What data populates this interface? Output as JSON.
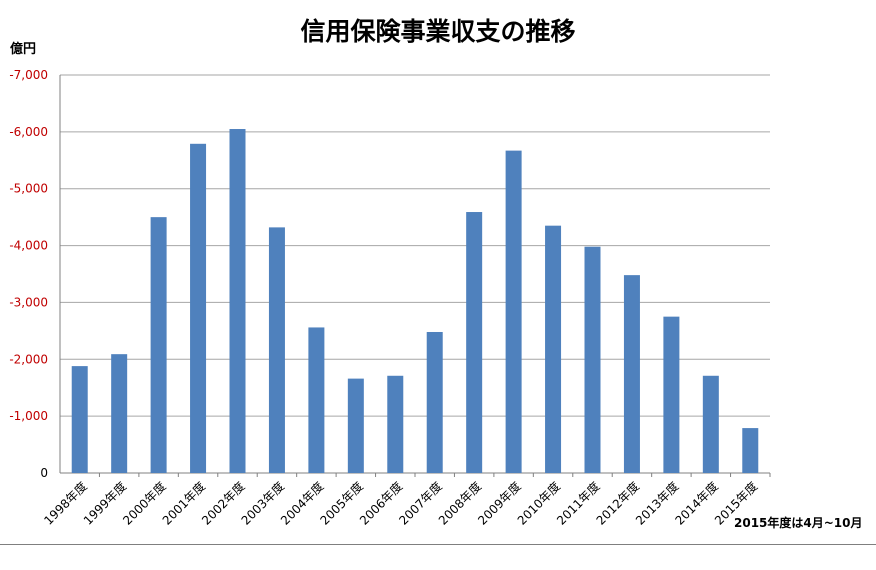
{
  "chart_data": {
    "type": "bar",
    "title": "信用保険事業収支の推移",
    "ylabel": "億円",
    "xlabel": "",
    "ylim": [
      0,
      -7000
    ],
    "y_ticks": [
      "-7,000",
      "-6,000",
      "-5,000",
      "-4,000",
      "-3,000",
      "-2,000",
      "-1,000",
      "0"
    ],
    "y_tick_values": [
      -7000,
      -6000,
      -5000,
      -4000,
      -3000,
      -2000,
      -1000,
      0
    ],
    "categories": [
      "1998年度",
      "1999年度",
      "2000年度",
      "2001年度",
      "2002年度",
      "2003年度",
      "2004年度",
      "2005年度",
      "2006年度",
      "2007年度",
      "2008年度",
      "2009年度",
      "2010年度",
      "2011年度",
      "2012年度",
      "2013年度",
      "2014年度",
      "2015年度"
    ],
    "values": [
      -1880,
      -2090,
      -4500,
      -5790,
      -6050,
      -4320,
      -2560,
      -1660,
      -1710,
      -2480,
      -4590,
      -5670,
      -4350,
      -3980,
      -3480,
      -2750,
      -1710,
      -790
    ],
    "grid": true,
    "bar_color": "#4f81bd",
    "tick_label_color": "#c00000",
    "note": "2015年度は4月~10月"
  }
}
